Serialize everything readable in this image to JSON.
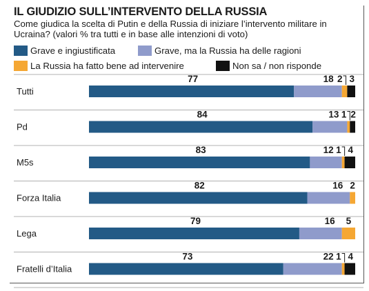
{
  "chart_data": {
    "type": "bar",
    "orientation": "horizontal",
    "stacked": true,
    "title": "IL GIUDIZIO SULL’INTERVENTO DELLA RUSSIA",
    "subtitle": "Come giudica la scelta di Putin e della Russia di iniziare l’intervento militare in Ucraina? (valori % tra tutti e in base alle intenzioni di voto)",
    "categories": [
      "Tutti",
      "Pd",
      "M5s",
      "Forza Italia",
      "Lega",
      "Fratelli d’Italia"
    ],
    "series": [
      {
        "name": "Grave e ingiustificata",
        "color": "#235a86",
        "values": [
          77,
          84,
          83,
          82,
          79,
          73
        ]
      },
      {
        "name": "Grave, ma la Russia ha delle ragioni",
        "color": "#8f9bcb",
        "values": [
          18,
          13,
          12,
          16,
          16,
          22
        ]
      },
      {
        "name": "La Russia ha fatto bene ad intervenire",
        "color": "#f5a733",
        "values": [
          2,
          1,
          1,
          2,
          5,
          1
        ]
      },
      {
        "name": "Non sa / non risponde",
        "color": "#111111",
        "values": [
          3,
          2,
          4,
          0,
          0,
          4
        ]
      }
    ],
    "xlim": [
      0,
      100
    ],
    "legend_position": "top",
    "grid": false
  }
}
